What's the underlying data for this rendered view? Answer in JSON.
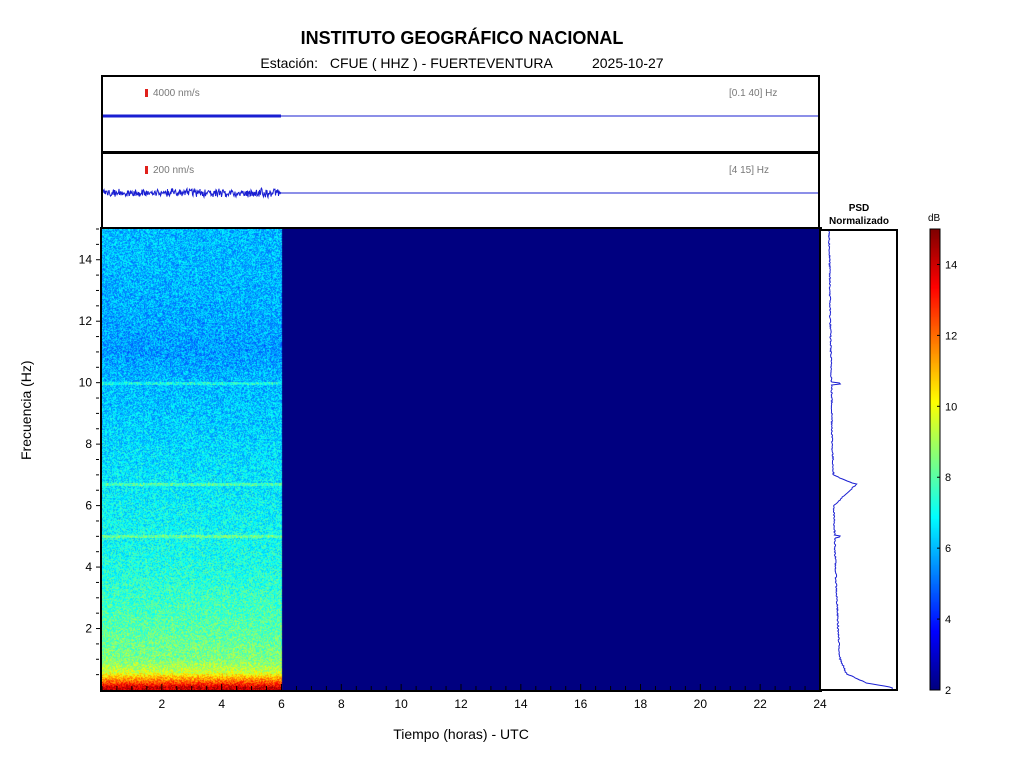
{
  "header": {
    "title": "INSTITUTO GEOGRÁFICO NACIONAL",
    "station_label": "Estación:",
    "station_value": "CFUE ( HHZ ) - FUERTEVENTURA",
    "date": "2025-10-27"
  },
  "trace1": {
    "scale": "4000 nm/s",
    "band": "[0.1 40] Hz"
  },
  "trace2": {
    "scale": "200 nm/s",
    "band": "[4 15] Hz"
  },
  "psd": {
    "title_line1": "PSD",
    "title_line2": "Normalizado"
  },
  "colorbar": {
    "unit": "dB",
    "min": 2,
    "max": 15,
    "ticks": [
      2,
      4,
      6,
      8,
      10,
      12,
      14
    ],
    "colormap": "jet"
  },
  "chart_data": {
    "type": "heatmap",
    "title": "INSTITUTO GEOGRÁFICO NACIONAL",
    "xlabel": "Tiempo (horas) - UTC",
    "ylabel": "Frecuencia  (Hz)",
    "xlim": [
      0,
      24
    ],
    "ylim": [
      0,
      15
    ],
    "x_ticks": [
      2,
      4,
      6,
      8,
      10,
      12,
      14,
      16,
      18,
      20,
      22,
      24
    ],
    "y_ticks": [
      2,
      4,
      6,
      8,
      10,
      12,
      14
    ],
    "data_end_hour": 6,
    "empty_value_db": 2,
    "spectrum_db_by_frequency": [
      {
        "hz": 0.1,
        "db": 14
      },
      {
        "hz": 0.3,
        "db": 12
      },
      {
        "hz": 0.6,
        "db": 9.5
      },
      {
        "hz": 1,
        "db": 8.5
      },
      {
        "hz": 2,
        "db": 8
      },
      {
        "hz": 3,
        "db": 7.6
      },
      {
        "hz": 4,
        "db": 7.2
      },
      {
        "hz": 5,
        "db": 7
      },
      {
        "hz": 6,
        "db": 6.8
      },
      {
        "hz": 8,
        "db": 6.4
      },
      {
        "hz": 10,
        "db": 6
      },
      {
        "hz": 11,
        "db": 5.6
      },
      {
        "hz": 12,
        "db": 5.8
      },
      {
        "hz": 14,
        "db": 6
      },
      {
        "hz": 15,
        "db": 6
      }
    ],
    "spectral_lines_hz": [
      5.0,
      6.7,
      10.0
    ],
    "psd_normalized": {
      "frequency_hz": [
        0.05,
        0.2,
        0.5,
        1,
        1.5,
        2,
        3,
        4,
        5,
        6,
        6.7,
        7,
        8,
        10,
        12,
        14,
        15
      ],
      "value": [
        1.0,
        0.6,
        0.3,
        0.2,
        0.18,
        0.17,
        0.15,
        0.13,
        0.12,
        0.1,
        0.45,
        0.1,
        0.08,
        0.07,
        0.05,
        0.04,
        0.03
      ]
    }
  }
}
